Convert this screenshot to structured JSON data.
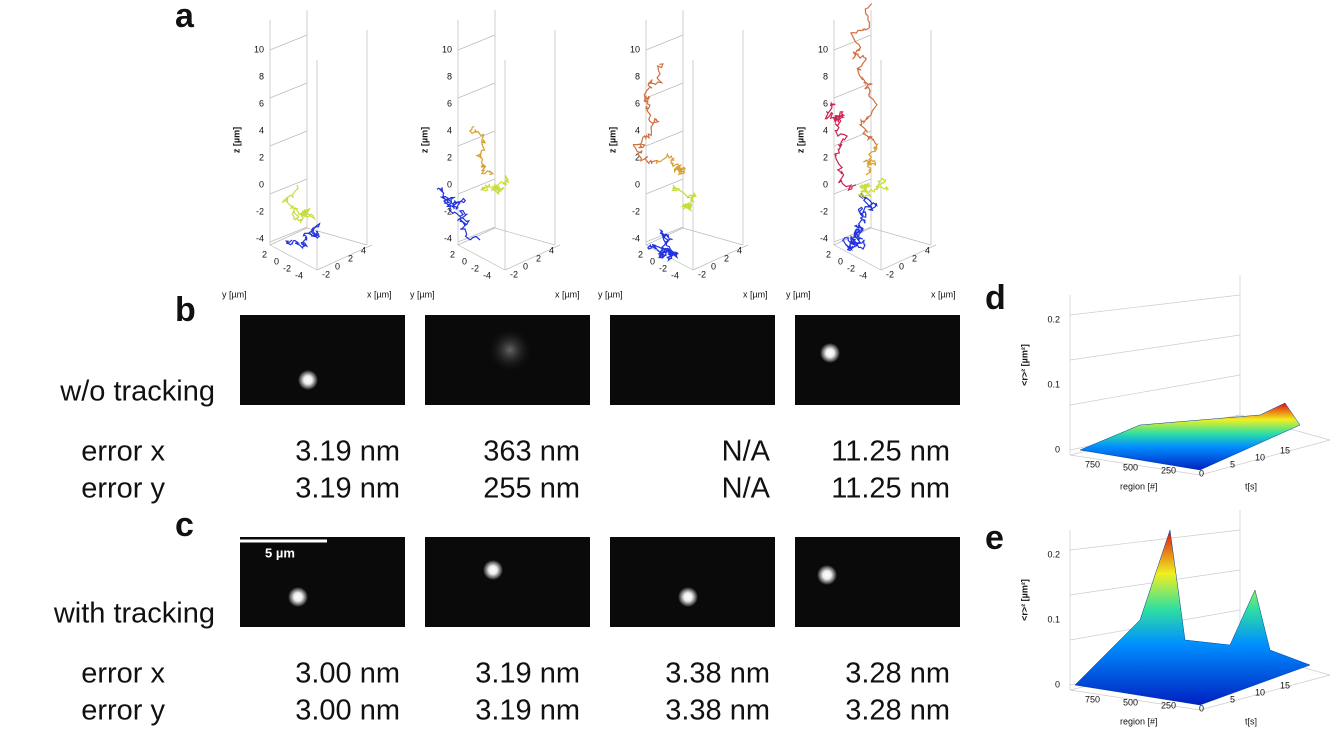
{
  "panel_letters": {
    "a": "a",
    "b": "b",
    "c": "c",
    "d": "d",
    "e": "e"
  },
  "panel_a": {
    "z_label": "z [µm]",
    "y_label": "y [µm]",
    "x_label": "x [µm]",
    "z_ticks": [
      "10",
      "8",
      "6",
      "4",
      "2",
      "0",
      "-2",
      "-4"
    ],
    "y_ticks": [
      "2",
      "0",
      "-2",
      "-4"
    ],
    "x_ticks": [
      "-2",
      "0",
      "2",
      "4"
    ]
  },
  "rows": [
    {
      "label": "w/o tracking",
      "error_x_label": "error x",
      "error_y_label": "error y",
      "errors": [
        [
          "3.19 nm",
          "3.19 nm"
        ],
        [
          "363 nm",
          "255 nm"
        ],
        [
          "N/A",
          "N/A"
        ],
        [
          "11.25 nm",
          "11.25 nm"
        ]
      ]
    },
    {
      "label": "with tracking",
      "error_x_label": "error x",
      "error_y_label": "error y",
      "scale_bar": "5 µm",
      "errors": [
        [
          "3.00 nm",
          "3.00 nm"
        ],
        [
          "3.19 nm",
          "3.19 nm"
        ],
        [
          "3.38 nm",
          "3.38 nm"
        ],
        [
          "3.28 nm",
          "3.28 nm"
        ]
      ]
    }
  ],
  "panel_d": {
    "y_label": "<r>² [µm²]",
    "y_ticks": [
      "0.2",
      "0.1",
      "0"
    ],
    "region_ticks": [
      "750",
      "500",
      "250",
      "0"
    ],
    "t_ticks": [
      "5",
      "10",
      "15"
    ],
    "region_label": "region [#]",
    "t_label": "t[s]"
  },
  "panel_e": {
    "y_label": "<r>² [µm²]",
    "y_ticks": [
      "0.2",
      "0.1",
      "0"
    ],
    "region_ticks": [
      "750",
      "500",
      "250",
      "0"
    ],
    "t_ticks": [
      "5",
      "10",
      "15"
    ],
    "region_label": "region [#]",
    "t_label": "t[s]"
  }
}
